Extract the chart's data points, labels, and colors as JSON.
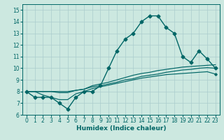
{
  "xlabel": "Humidex (Indice chaleur)",
  "bg_color": "#cce8e0",
  "grid_color": "#aacccc",
  "line_color": "#006666",
  "xlim": [
    -0.5,
    23.5
  ],
  "ylim": [
    6.0,
    15.5
  ],
  "xticks": [
    0,
    1,
    2,
    3,
    4,
    5,
    6,
    7,
    8,
    9,
    10,
    11,
    12,
    13,
    14,
    15,
    16,
    17,
    18,
    19,
    20,
    21,
    22,
    23
  ],
  "yticks": [
    6,
    7,
    8,
    9,
    10,
    11,
    12,
    13,
    14,
    15
  ],
  "main_curve": [
    8.0,
    7.5,
    7.5,
    7.5,
    7.0,
    6.5,
    7.5,
    8.0,
    8.0,
    8.5,
    10.0,
    11.5,
    12.5,
    13.0,
    14.0,
    14.5,
    14.5,
    13.5,
    13.0,
    11.0,
    10.5,
    11.5,
    10.8,
    10.0
  ],
  "line1": [
    8.0,
    8.0,
    7.7,
    7.5,
    7.3,
    7.3,
    7.8,
    8.0,
    8.25,
    8.4,
    8.55,
    8.7,
    8.85,
    9.0,
    9.15,
    9.25,
    9.35,
    9.45,
    9.5,
    9.55,
    9.6,
    9.65,
    9.7,
    9.5
  ],
  "line2": [
    8.0,
    8.0,
    8.0,
    8.0,
    7.9,
    7.9,
    8.1,
    8.2,
    8.4,
    8.5,
    8.65,
    8.8,
    9.0,
    9.1,
    9.3,
    9.4,
    9.5,
    9.65,
    9.75,
    9.85,
    9.9,
    10.0,
    10.05,
    10.0
  ],
  "line3": [
    8.0,
    8.0,
    8.0,
    8.0,
    8.0,
    8.0,
    8.1,
    8.2,
    8.5,
    8.65,
    8.8,
    9.0,
    9.2,
    9.4,
    9.55,
    9.65,
    9.8,
    9.9,
    10.0,
    10.1,
    10.15,
    10.2,
    10.25,
    10.3
  ],
  "markersize": 2.5,
  "linewidth": 1.0,
  "tick_fontsize": 5.5,
  "xlabel_fontsize": 6.5
}
